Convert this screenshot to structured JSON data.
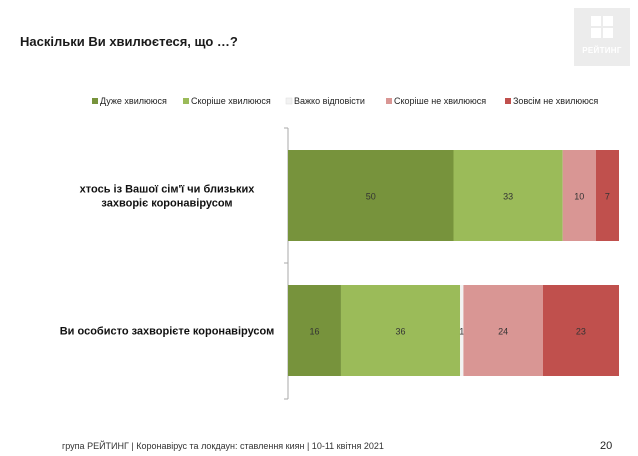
{
  "title": "Наскільки Ви хвилюєтеся, що …?",
  "logo_text": "РЕЙТИНГ",
  "footer": "група РЕЙТИНГ | Коронавірус та локдаун: ставлення киян | 10-11 квітня 2021",
  "page_number": "20",
  "colors": {
    "very_worried": "#77933c",
    "rather_worried": "#9bbb59",
    "hard_to_say": "#f2f2f2",
    "rather_not_worried": "#d99694",
    "not_worried": "#c0504d"
  },
  "chart_data": {
    "type": "bar",
    "orientation": "horizontal",
    "stacked": true,
    "xlim": [
      0,
      100
    ],
    "legend_position": "top",
    "grid": false,
    "categories": [
      "хтось із Вашої сім'ї чи близьких захворіє коронавірусом",
      "Ви особисто захворієте коронавірусом"
    ],
    "series": [
      {
        "name": "Дуже хвилююся",
        "color": "#77933c",
        "values": [
          50,
          16
        ]
      },
      {
        "name": "Скоріше хвилююся",
        "color": "#9bbb59",
        "values": [
          33,
          36
        ]
      },
      {
        "name": "Важко відповісти",
        "color": "#f2f2f2",
        "values": [
          0,
          1
        ]
      },
      {
        "name": "Скоріше не хвилююся",
        "color": "#d99694",
        "values": [
          10,
          24
        ]
      },
      {
        "name": "Зовсім не хвилююся",
        "color": "#c0504d",
        "values": [
          7,
          23
        ]
      }
    ],
    "data_labels": [
      [
        "50",
        "33",
        "",
        "10",
        "7"
      ],
      [
        "16",
        "36",
        "1",
        "24",
        "23"
      ]
    ]
  }
}
